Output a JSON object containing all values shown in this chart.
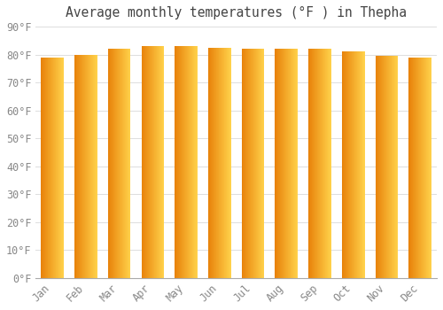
{
  "title": "Average monthly temperatures (°F ) in Thepha",
  "months": [
    "Jan",
    "Feb",
    "Mar",
    "Apr",
    "May",
    "Jun",
    "Jul",
    "Aug",
    "Sep",
    "Oct",
    "Nov",
    "Dec"
  ],
  "values": [
    79,
    80,
    82,
    83,
    83,
    82.5,
    82,
    82,
    82,
    81,
    79.5,
    79
  ],
  "ylim": [
    0,
    90
  ],
  "yticks": [
    0,
    10,
    20,
    30,
    40,
    50,
    60,
    70,
    80,
    90
  ],
  "bar_color_left": "#E8820A",
  "bar_color_right": "#FFD04A",
  "background_color": "#FFFFFF",
  "grid_color": "#DDDDDD",
  "title_fontsize": 10.5,
  "tick_fontsize": 8.5,
  "bar_width": 0.68
}
